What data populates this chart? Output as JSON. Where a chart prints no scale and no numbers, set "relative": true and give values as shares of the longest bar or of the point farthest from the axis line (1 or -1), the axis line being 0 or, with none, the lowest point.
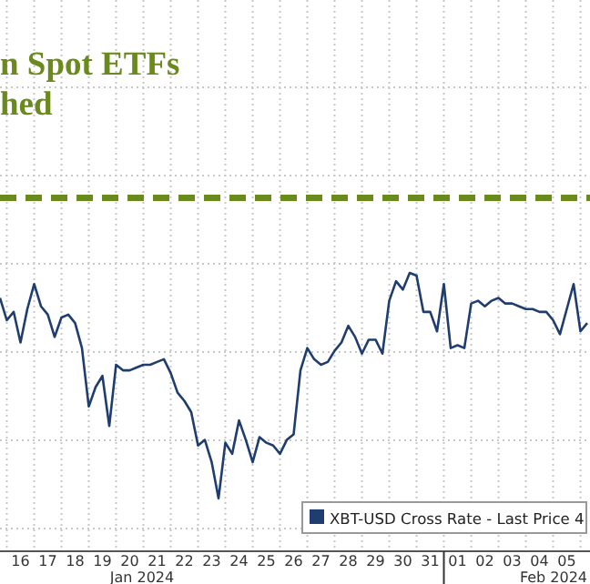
{
  "chart_data": {
    "type": "line",
    "relative": true,
    "annotations": [
      "n Spot ETFs",
      "hed",
      "Jan 2024",
      "Feb 2024"
    ],
    "x": [
      "2024-01-15T18:00",
      "2024-01-16T00:00",
      "2024-01-16T06:00",
      "2024-01-16T12:00",
      "2024-01-16T18:00",
      "2024-01-17T00:00",
      "2024-01-17T06:00",
      "2024-01-17T12:00",
      "2024-01-17T18:00",
      "2024-01-18T00:00",
      "2024-01-18T06:00",
      "2024-01-18T12:00",
      "2024-01-18T18:00",
      "2024-01-19T00:00",
      "2024-01-19T06:00",
      "2024-01-19T12:00",
      "2024-01-19T18:00",
      "2024-01-20T00:00",
      "2024-01-20T06:00",
      "2024-01-20T12:00",
      "2024-01-20T18:00",
      "2024-01-21T00:00",
      "2024-01-21T06:00",
      "2024-01-21T12:00",
      "2024-01-21T18:00",
      "2024-01-22T00:00",
      "2024-01-22T06:00",
      "2024-01-22T12:00",
      "2024-01-22T18:00",
      "2024-01-23T00:00",
      "2024-01-23T06:00",
      "2024-01-23T12:00",
      "2024-01-23T18:00",
      "2024-01-24T00:00",
      "2024-01-24T06:00",
      "2024-01-24T12:00",
      "2024-01-24T18:00",
      "2024-01-25T00:00",
      "2024-01-25T06:00",
      "2024-01-25T12:00",
      "2024-01-25T18:00",
      "2024-01-26T00:00",
      "2024-01-26T06:00",
      "2024-01-26T12:00",
      "2024-01-26T18:00",
      "2024-01-27T00:00",
      "2024-01-27T06:00",
      "2024-01-27T12:00",
      "2024-01-27T18:00",
      "2024-01-28T00:00",
      "2024-01-28T06:00",
      "2024-01-28T12:00",
      "2024-01-28T18:00",
      "2024-01-29T00:00",
      "2024-01-29T06:00",
      "2024-01-29T12:00",
      "2024-01-29T18:00",
      "2024-01-30T00:00",
      "2024-01-30T06:00",
      "2024-01-30T12:00",
      "2024-01-30T18:00",
      "2024-01-31T00:00",
      "2024-01-31T06:00",
      "2024-01-31T12:00",
      "2024-01-31T18:00",
      "2024-02-01T00:00",
      "2024-02-01T06:00",
      "2024-02-01T12:00",
      "2024-02-01T18:00",
      "2024-02-02T00:00",
      "2024-02-02T06:00",
      "2024-02-02T12:00",
      "2024-02-02T18:00",
      "2024-02-03T00:00",
      "2024-02-03T06:00",
      "2024-02-03T12:00",
      "2024-02-03T18:00",
      "2024-02-04T00:00",
      "2024-02-04T06:00",
      "2024-02-04T12:00",
      "2024-02-04T18:00",
      "2024-02-05T00:00",
      "2024-02-05T06:00",
      "2024-02-05T12:00",
      "2024-02-05T18:00",
      "2024-02-06T00:00",
      "2024-02-06T06:00"
    ],
    "xlim": [
      "2024-01-15T18:00",
      "2024-02-06T08:24"
    ],
    "xticks": [
      {
        "value": "2024-01-16T12:00",
        "label": "16"
      },
      {
        "value": "2024-01-17T12:00",
        "label": "17"
      },
      {
        "value": "2024-01-18T12:00",
        "label": "18"
      },
      {
        "value": "2024-01-19T12:00",
        "label": "19"
      },
      {
        "value": "2024-01-20T12:00",
        "label": "20"
      },
      {
        "value": "2024-01-21T12:00",
        "label": "21"
      },
      {
        "value": "2024-01-22T12:00",
        "label": "22"
      },
      {
        "value": "2024-01-23T12:00",
        "label": "23"
      },
      {
        "value": "2024-01-24T12:00",
        "label": "24"
      },
      {
        "value": "2024-01-25T12:00",
        "label": "25"
      },
      {
        "value": "2024-01-26T12:00",
        "label": "26"
      },
      {
        "value": "2024-01-27T12:00",
        "label": "27"
      },
      {
        "value": "2024-01-28T12:00",
        "label": "28"
      },
      {
        "value": "2024-01-29T12:00",
        "label": "29"
      },
      {
        "value": "2024-01-30T12:00",
        "label": "30"
      },
      {
        "value": "2024-01-31T12:00",
        "label": "31"
      },
      {
        "value": "2024-02-01T00:00",
        "label": null
      },
      {
        "value": "2024-02-01T12:00",
        "label": "01"
      },
      {
        "value": "2024-02-02T12:00",
        "label": "02"
      },
      {
        "value": "2024-02-03T12:00",
        "label": "03"
      },
      {
        "value": "2024-02-04T12:00",
        "label": "04"
      },
      {
        "value": "2024-02-05T12:00",
        "label": "05"
      }
    ],
    "series": [
      {
        "name": "XBT-USD Cross Rate - Last Price 4",
        "color": "#1f3d6e",
        "values": [
          0.91,
          0.83,
          0.86,
          0.75,
          0.87,
          0.96,
          0.88,
          0.85,
          0.77,
          0.84,
          0.85,
          0.82,
          0.73,
          0.52,
          0.59,
          0.63,
          0.45,
          0.67,
          0.65,
          0.65,
          0.66,
          0.67,
          0.67,
          0.68,
          0.69,
          0.64,
          0.57,
          0.54,
          0.5,
          0.38,
          0.4,
          0.32,
          0.19,
          0.39,
          0.35,
          0.47,
          0.4,
          0.32,
          0.41,
          0.39,
          0.38,
          0.35,
          0.4,
          0.42,
          0.65,
          0.73,
          0.69,
          0.67,
          0.68,
          0.72,
          0.75,
          0.81,
          0.77,
          0.71,
          0.76,
          0.76,
          0.71,
          0.9,
          0.97,
          0.94,
          1,
          0.99,
          0.86,
          0.86,
          0.79,
          0.96,
          0.73,
          0.74,
          0.73,
          0.89,
          0.9,
          0.88,
          0.9,
          0.91,
          0.89,
          0.89,
          0.88,
          0.87,
          0.87,
          0.86,
          0.86,
          0.83,
          0.78,
          0.87,
          0.96,
          0.79,
          0.82
        ]
      }
    ],
    "ref_lines": [
      {
        "axis": "y",
        "value": 1.27,
        "color": "#6b8a1e",
        "line_style": "dashed"
      }
    ],
    "grid": true,
    "legend": "bottom right"
  }
}
